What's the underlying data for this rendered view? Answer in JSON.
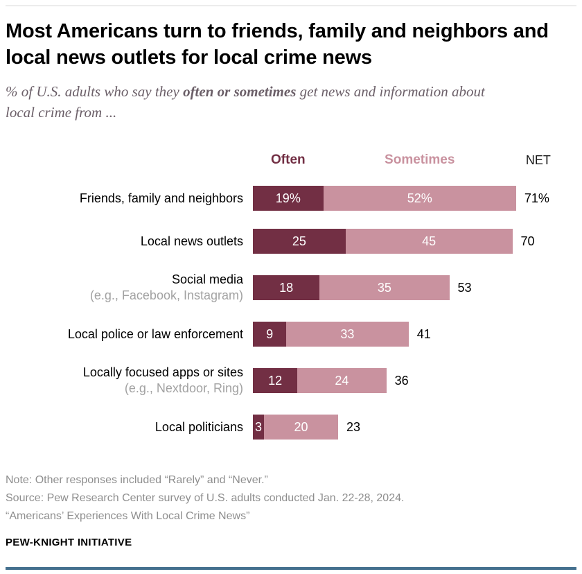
{
  "header": {
    "title": "Most Americans turn to friends, family and neighbors and local news outlets for local crime news",
    "subtitle_prefix": "% of U.S. adults who say they ",
    "subtitle_bold": "often or sometimes",
    "subtitle_suffix": " get news and information about local crime from ..."
  },
  "chart_data": {
    "type": "bar",
    "orientation": "horizontal",
    "stacked": true,
    "legend_often": "Often",
    "legend_sometimes": "Sometimes",
    "net_header": "NET",
    "categories": [
      "Friends, family and neighbors",
      "Local news outlets",
      "Social media (e.g., Facebook, Instagram)",
      "Local police or law enforcement",
      "Locally focused apps or sites (e.g., Nextdoor, Ring)",
      "Local politicians"
    ],
    "series": [
      {
        "name": "Often",
        "values": [
          19,
          25,
          18,
          9,
          12,
          3
        ]
      },
      {
        "name": "Sometimes",
        "values": [
          52,
          45,
          35,
          33,
          24,
          20
        ]
      }
    ],
    "net_values": [
      71,
      70,
      53,
      41,
      36,
      23
    ],
    "xlim": [
      0,
      80
    ],
    "legend_position": "top",
    "colors": {
      "often": "#722f44",
      "sometimes": "#c9929f"
    },
    "rows": [
      {
        "label": "Friends, family and neighbors",
        "sublabel": "",
        "often": 19,
        "sometimes": 52,
        "net": 71,
        "often_label": "19%",
        "sometimes_label": "52%",
        "net_label": "71%"
      },
      {
        "label": "Local news outlets",
        "sublabel": "",
        "often": 25,
        "sometimes": 45,
        "net": 70,
        "often_label": "25",
        "sometimes_label": "45",
        "net_label": "70"
      },
      {
        "label": "Social media",
        "sublabel": "(e.g., Facebook, Instagram)",
        "often": 18,
        "sometimes": 35,
        "net": 53,
        "often_label": "18",
        "sometimes_label": "35",
        "net_label": "53"
      },
      {
        "label": "Local police or law enforcement",
        "sublabel": "",
        "often": 9,
        "sometimes": 33,
        "net": 41,
        "often_label": "9",
        "sometimes_label": "33",
        "net_label": "41"
      },
      {
        "label": "Locally focused apps or sites",
        "sublabel": "(e.g., Nextdoor, Ring)",
        "often": 12,
        "sometimes": 24,
        "net": 36,
        "often_label": "12",
        "sometimes_label": "24",
        "net_label": "36"
      },
      {
        "label": "Local politicians",
        "sublabel": "",
        "often": 3,
        "sometimes": 20,
        "net": 23,
        "often_label": "3",
        "sometimes_label": "20",
        "net_label": "23"
      }
    ]
  },
  "footer": {
    "note": "Note: Other responses included “Rarely” and “Never.”",
    "source_line1": "Source: Pew Research Center survey of U.S. adults conducted Jan. 22-28, 2024.",
    "source_line2": "“Americans’ Experiences With Local Crime News”",
    "brand": "PEW-KNIGHT INITIATIVE"
  }
}
